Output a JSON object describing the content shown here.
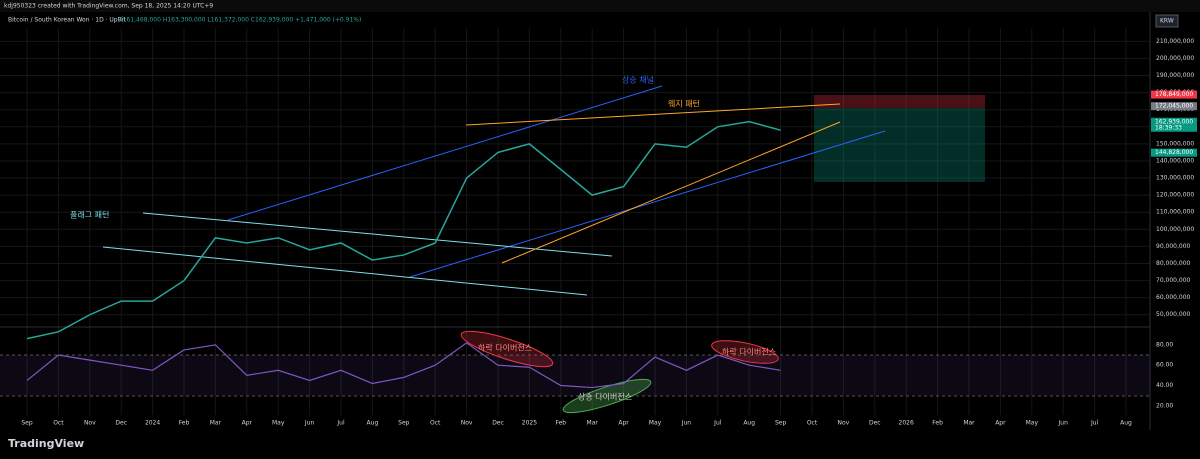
{
  "header": "kdj950323 created with TradingView.com, Sep 18, 2025 14:20 UTC+9",
  "chart_data": {
    "type": "line",
    "title": "Bitcoin / South Korean Won · 1D · UpBit",
    "ohlc": "O161,468,000 H163,300,000 L161,372,000 C162,939,000 +1,471,000 (+0.91%)",
    "currency": "KRW",
    "categories": [
      "Sep",
      "Oct",
      "Nov",
      "Dec",
      "2024",
      "Feb",
      "Mar",
      "Apr",
      "May",
      "Jun",
      "Jul",
      "Aug",
      "Sep",
      "Oct",
      "Nov",
      "Dec",
      "2025",
      "Feb",
      "Mar",
      "Apr",
      "May",
      "Jun",
      "Jul",
      "Aug",
      "Sep",
      "Oct",
      "Nov",
      "Dec",
      "2026",
      "Feb",
      "Mar",
      "Apr",
      "May",
      "Jun",
      "Jul",
      "Aug"
    ],
    "series": [
      {
        "name": "Bitcoin / South Korean Won",
        "color": "#26a69a",
        "values": [
          36000000,
          40000000,
          50000000,
          58000000,
          58000000,
          70000000,
          95000000,
          92000000,
          95000000,
          88000000,
          92000000,
          82000000,
          85000000,
          92000000,
          130000000,
          145000000,
          150000000,
          135000000,
          120000000,
          125000000,
          150000000,
          148000000,
          160000000,
          163000000,
          158000000,
          null,
          null,
          null,
          null,
          null,
          null,
          null,
          null,
          null,
          null,
          null
        ]
      }
    ],
    "ylim": [
      44000000,
      226000000
    ],
    "yticks": [
      {
        "value": 50000000,
        "label": "50,000,000"
      },
      {
        "value": 60000000,
        "label": "60,000,000"
      },
      {
        "value": 70000000,
        "label": "70,000,000"
      },
      {
        "value": 80000000,
        "label": "80,000,000"
      },
      {
        "value": 90000000,
        "label": "90,000,000"
      },
      {
        "value": 100000000,
        "label": "100,000,000"
      },
      {
        "value": 110000000,
        "label": "110,000,000"
      },
      {
        "value": 120000000,
        "label": "120,000,000"
      },
      {
        "value": 130000000,
        "label": "130,000,000"
      },
      {
        "value": 140000000,
        "label": "140,000,000"
      },
      {
        "value": 150000000,
        "label": "150,000,000"
      },
      {
        "value": 160000000,
        "label": "160,000,000"
      },
      {
        "value": 170000000,
        "label": "170,000,000"
      },
      {
        "value": 180000000,
        "label": "180,000,000"
      },
      {
        "value": 190000000,
        "label": "190,000,000"
      },
      {
        "value": 200000000,
        "label": "200,000,000"
      },
      {
        "value": 210000000,
        "label": "210,000,000"
      }
    ],
    "price_tags": [
      {
        "value": 178849000,
        "label": "178,849,000",
        "color": "#f23645"
      },
      {
        "value": 172045000,
        "label": "172,045,000",
        "color": "#787b86"
      },
      {
        "value": 162939000,
        "label": "162,939,000",
        "color": "#089981",
        "countdown": "18:39:33"
      },
      {
        "value": 144828000,
        "label": "144,828,000",
        "color": "#089981"
      }
    ],
    "annotations": {
      "channel": "상승 채널",
      "wedge": "웨지 패턴",
      "flag": "플래그 패턴",
      "bear_div_1": "하락 다이버전스",
      "bear_div_2": "하락 다이버전스",
      "bull_div": "상승 다이버전스"
    },
    "rsi": {
      "color": "#7e57c2",
      "values": [
        45,
        70,
        65,
        60,
        55,
        75,
        80,
        50,
        55,
        45,
        55,
        42,
        48,
        60,
        82,
        60,
        58,
        40,
        38,
        42,
        68,
        55,
        70,
        60,
        55
      ],
      "ylim": [
        11,
        96.6
      ],
      "yticks": [
        {
          "value": 20,
          "label": "20.00"
        },
        {
          "value": 40,
          "label": "40.00"
        },
        {
          "value": 60,
          "label": "60.00"
        },
        {
          "value": 80,
          "label": "80.00"
        }
      ]
    },
    "grid": true,
    "footer": "TradingView"
  }
}
